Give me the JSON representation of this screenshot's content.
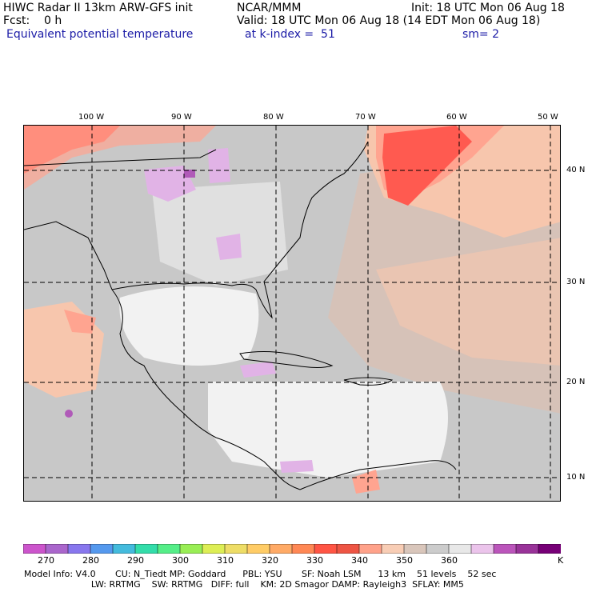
{
  "header": {
    "line1_left": "HIWC Radar II 13km ARW-GFS init",
    "line1_mid": "NCAR/MMM",
    "line1_right": "Init: 18 UTC Mon 06 Aug 18",
    "line2_left": "Fcst:    0 h",
    "line2_right": "Valid: 18 UTC Mon 06 Aug 18 (14 EDT Mon 06 Aug 18)",
    "line3_left": "Equivalent potential temperature",
    "line3_mid": "at k-index =  51",
    "line3_right": "sm= 2"
  },
  "map": {
    "lon_labels": [
      "100 W",
      "90 W",
      "80 W",
      "70 W",
      "60 W",
      "50 W"
    ],
    "lat_labels": [
      "40 N",
      "30 N",
      "20 N",
      "10 N"
    ],
    "colors": {
      "very_warm": "#ff5a50",
      "warm": "#ffa490",
      "mild": "#f7c6ad",
      "tan": "#d6c2b8",
      "gray": "#c8c8c8",
      "light_gray": "#e0e0e0",
      "white": "#f2f2f2",
      "pink": "#e1b3e6",
      "purple": "#b05ab8"
    }
  },
  "colorbar": {
    "colors": [
      "#cc55cc",
      "#aa66cc",
      "#8877ee",
      "#5599ee",
      "#44bbdd",
      "#33ddaa",
      "#55ee88",
      "#99ee55",
      "#ddee55",
      "#eedd66",
      "#ffcc66",
      "#ffaa66",
      "#ff8855",
      "#ff5544",
      "#ee5544",
      "#ffa28a",
      "#f8cdb5",
      "#d9c6bb",
      "#cccccc",
      "#e8e8e8",
      "#ebc4eb",
      "#bb55bb",
      "#993399",
      "#770077"
    ],
    "labels": [
      "270",
      "280",
      "290",
      "300",
      "310",
      "320",
      "330",
      "340",
      "350",
      "360",
      "K"
    ]
  },
  "footer": {
    "line1": "Model Info: V4.0       CU: N_Tiedt MP: Goddard      PBL: YSU       SF: Noah LSM      13 km    51 levels    52 sec",
    "line2": "                        LW: RRTMG    SW: RRTMG   DIFF: full    KM: 2D Smagor DAMP: Rayleigh3  SFLAY: MM5"
  }
}
